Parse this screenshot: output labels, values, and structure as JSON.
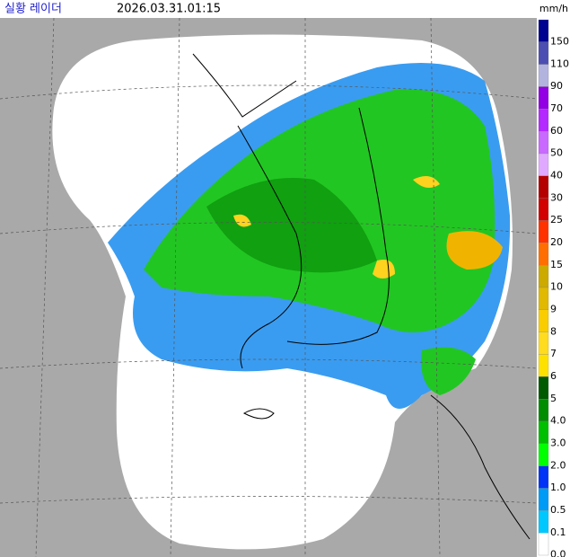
{
  "header": {
    "title": "실황 레이더",
    "timestamp": "2026.03.31.01:15",
    "unit": "mm/h"
  },
  "legend": {
    "items": [
      {
        "label": "150",
        "color": "#000390"
      },
      {
        "label": "110",
        "color": "#4c4eb1"
      },
      {
        "label": "90",
        "color": "#b3b4de"
      },
      {
        "label": "70",
        "color": "#9300e4"
      },
      {
        "label": "60",
        "color": "#b329ff"
      },
      {
        "label": "50",
        "color": "#c969ff"
      },
      {
        "label": "40",
        "color": "#e0a9ff"
      },
      {
        "label": "30",
        "color": "#b40000"
      },
      {
        "label": "25",
        "color": "#d20000"
      },
      {
        "label": "20",
        "color": "#ff3200"
      },
      {
        "label": "15",
        "color": "#ff6e00"
      },
      {
        "label": "10",
        "color": "#ccaa00"
      },
      {
        "label": "9",
        "color": "#e0b900"
      },
      {
        "label": "8",
        "color": "#f9cd00"
      },
      {
        "label": "7",
        "color": "#ffdc1f"
      },
      {
        "label": "6",
        "color": "#ffe100"
      },
      {
        "label": "5",
        "color": "#005a00"
      },
      {
        "label": "4.0",
        "color": "#008c00"
      },
      {
        "label": "3.0",
        "color": "#00be00"
      },
      {
        "label": "2.0",
        "color": "#00ff00"
      },
      {
        "label": "1.0",
        "color": "#0033f5"
      },
      {
        "label": "0.5",
        "color": "#009bf5"
      },
      {
        "label": "0.1",
        "color": "#00c8ff"
      },
      {
        "label": "0.0",
        "color": "#ffffff"
      }
    ]
  }
}
